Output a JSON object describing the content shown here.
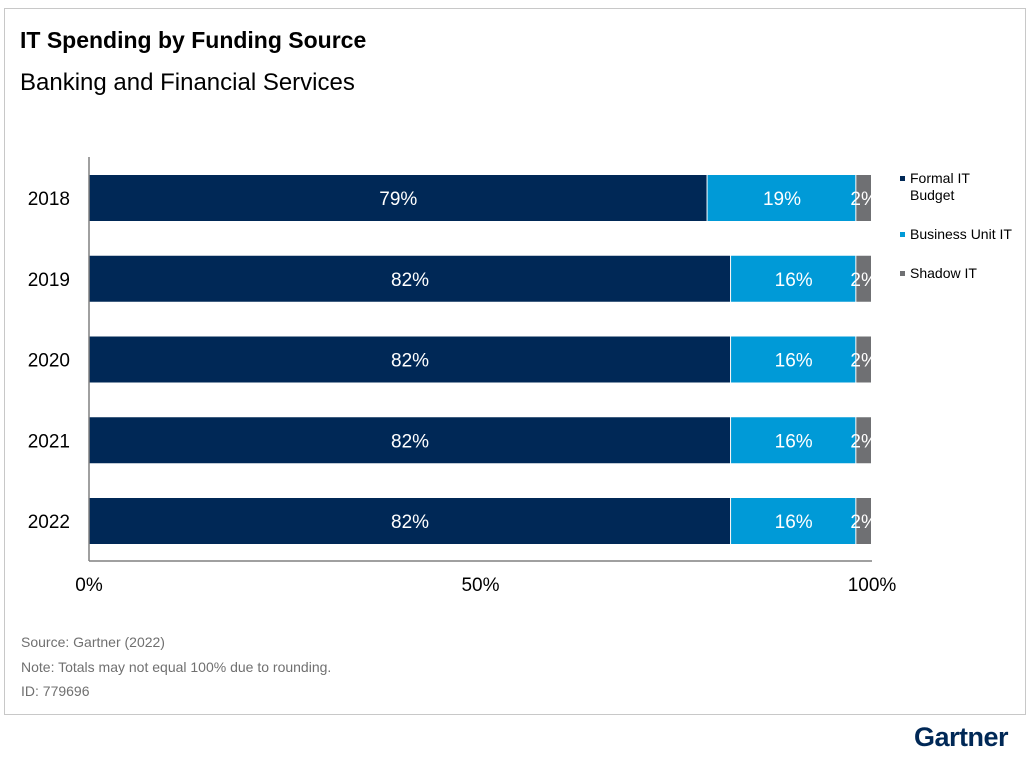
{
  "title": "IT Spending by Funding Source",
  "subtitle": "Banking and Financial Services",
  "notes": {
    "source": "Source: Gartner (2022)",
    "note": "Note: Totals may not equal 100% due to rounding.",
    "id": "ID: 779696"
  },
  "brand": "Gartner",
  "chart_data": {
    "type": "bar",
    "orientation": "horizontal",
    "stacked": true,
    "categories": [
      "2018",
      "2019",
      "2020",
      "2021",
      "2022"
    ],
    "series": [
      {
        "name": "Formal IT Budget",
        "color": "#002856",
        "values": [
          79,
          82,
          82,
          82,
          82
        ]
      },
      {
        "name": "Business Unit IT",
        "color": "#009AD7",
        "values": [
          19,
          16,
          16,
          16,
          16
        ]
      },
      {
        "name": "Shadow IT",
        "color": "#6F7073",
        "values": [
          2,
          2,
          2,
          2,
          2
        ]
      }
    ],
    "value_suffix": "%",
    "xlim": [
      0,
      100
    ],
    "xticks": [
      "0%",
      "50%",
      "100%"
    ],
    "legend_position": "right",
    "grid": false
  }
}
